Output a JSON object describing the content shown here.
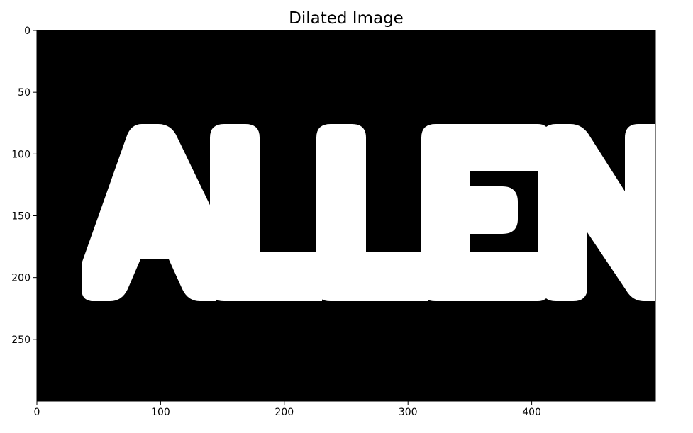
{
  "chart_data": {
    "type": "image",
    "title": "Dilated Image",
    "xlabel": "",
    "ylabel": "",
    "xlim": [
      0,
      500
    ],
    "ylim": [
      300,
      0
    ],
    "grid": false,
    "x_ticks": [
      0,
      100,
      200,
      300,
      400
    ],
    "y_ticks": [
      0,
      50,
      100,
      150,
      200,
      250
    ],
    "x_tick_labels": [
      "0",
      "100",
      "200",
      "300",
      "400"
    ],
    "y_tick_labels": [
      "0",
      "50",
      "100",
      "150",
      "200",
      "250"
    ],
    "colormap": "gray",
    "background_color": "#000000",
    "foreground_color": "#ffffff",
    "image_text": "ALLEN"
  }
}
